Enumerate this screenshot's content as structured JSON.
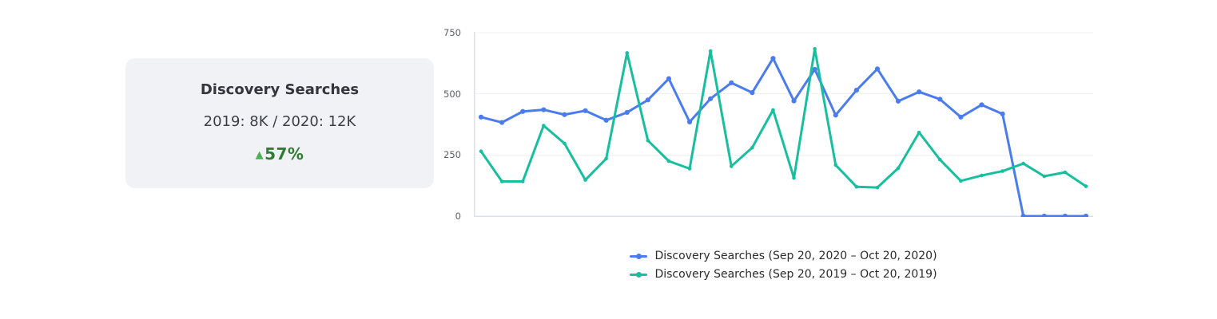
{
  "card": {
    "title": "Discovery Searches",
    "subtitle": "2019: 8K / 2020: 12K",
    "change_arrow": "▲",
    "change_value": "57%",
    "change_value_color": "#2e7d32",
    "change_arrow_color": "#4caf50",
    "background": "#f1f2f6"
  },
  "chart_data": {
    "type": "line",
    "title": "",
    "xlabel": "",
    "ylabel": "",
    "ylim": [
      0,
      750
    ],
    "yticks": [
      0,
      250,
      500,
      750
    ],
    "x_tick_labels_visible": false,
    "x_description": "daily values, one point per day",
    "grid": true,
    "grid_color": "#f0f0f0",
    "axis_color": "#dbe0ec",
    "legend_position": "bottom",
    "series": [
      {
        "name": "Discovery Searches (Sep 20, 2020 – Oct 20, 2020)",
        "color": "#4a7cf0",
        "marker_radius": 3.1,
        "values": [
          405,
          383,
          428,
          435,
          415,
          431,
          392,
          424,
          475,
          562,
          385,
          480,
          545,
          505,
          645,
          471,
          600,
          413,
          515,
          602,
          470,
          508,
          478,
          405,
          455,
          418,
          0,
          0,
          0,
          0
        ]
      },
      {
        "name": "Discovery Searches (Sep 20, 2019 – Oct 20, 2019)",
        "color": "#18bf9e",
        "marker_radius": 2.3,
        "values": [
          265,
          142,
          142,
          370,
          297,
          148,
          235,
          667,
          309,
          225,
          194,
          675,
          204,
          280,
          434,
          156,
          684,
          209,
          120,
          117,
          196,
          342,
          231,
          144,
          166,
          184,
          215,
          163,
          179,
          122
        ]
      }
    ]
  }
}
